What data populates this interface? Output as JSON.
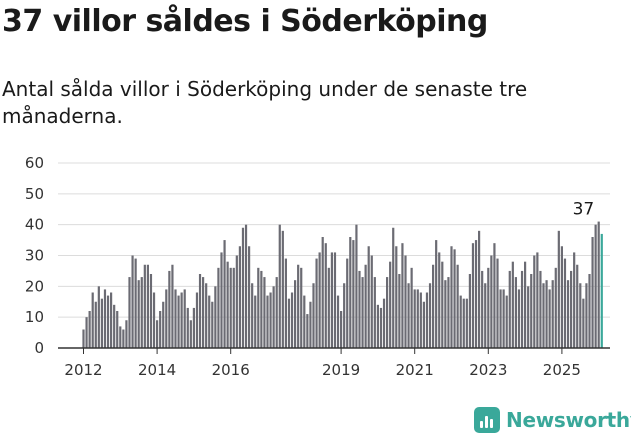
{
  "title": "37 villor såldes i Söderköping",
  "subtitle": "Antal sålda villor i Söderköping under de senaste tre månaderna.",
  "brand": {
    "name": "Newsworthy",
    "icon": "newsworthy-logo-icon"
  },
  "colors": {
    "bar": "#6b6b73",
    "highlight": "#3aa89a",
    "grid": "#dcdcdc",
    "axis": "#333333"
  },
  "chart_data": {
    "type": "bar",
    "title": "",
    "xlabel": "",
    "ylabel": "",
    "ylim": [
      0,
      60
    ],
    "yticks": [
      0,
      10,
      20,
      30,
      40,
      50,
      60
    ],
    "xticks": [
      "2012",
      "2014",
      "2016",
      "2019",
      "2021",
      "2023",
      "2025"
    ],
    "grid": true,
    "legend": "none",
    "start": "2012-01",
    "end": "2025-09",
    "annotation": {
      "label": "37",
      "value": 37,
      "month": "2025-09"
    },
    "values": [
      6,
      10,
      12,
      18,
      15,
      20,
      16,
      19,
      17,
      18,
      14,
      12,
      7,
      6,
      9,
      23,
      30,
      29,
      22,
      23,
      27,
      27,
      24,
      18,
      9,
      12,
      15,
      19,
      25,
      27,
      19,
      17,
      18,
      19,
      13,
      9,
      13,
      18,
      24,
      23,
      21,
      17,
      15,
      20,
      26,
      31,
      35,
      28,
      26,
      26,
      30,
      33,
      39,
      40,
      33,
      21,
      17,
      26,
      25,
      23,
      17,
      18,
      20,
      23,
      40,
      38,
      29,
      16,
      18,
      22,
      27,
      26,
      17,
      11,
      15,
      21,
      29,
      31,
      36,
      34,
      26,
      31,
      31,
      17,
      12,
      21,
      29,
      36,
      35,
      40,
      25,
      23,
      27,
      33,
      30,
      23,
      14,
      13,
      16,
      23,
      28,
      39,
      33,
      24,
      34,
      30,
      21,
      26,
      19,
      19,
      18,
      15,
      18,
      21,
      27,
      35,
      31,
      28,
      22,
      23,
      33,
      32,
      27,
      17,
      16,
      16,
      24,
      34,
      35,
      38,
      25,
      21,
      26,
      30,
      34,
      29,
      19,
      19,
      17,
      25,
      28,
      23,
      19,
      25,
      28,
      20,
      24,
      30,
      31,
      25,
      21,
      22,
      19,
      22,
      26,
      38,
      33,
      29,
      22,
      25,
      31,
      27,
      21,
      16,
      21,
      24,
      36,
      40,
      41,
      37
    ]
  }
}
